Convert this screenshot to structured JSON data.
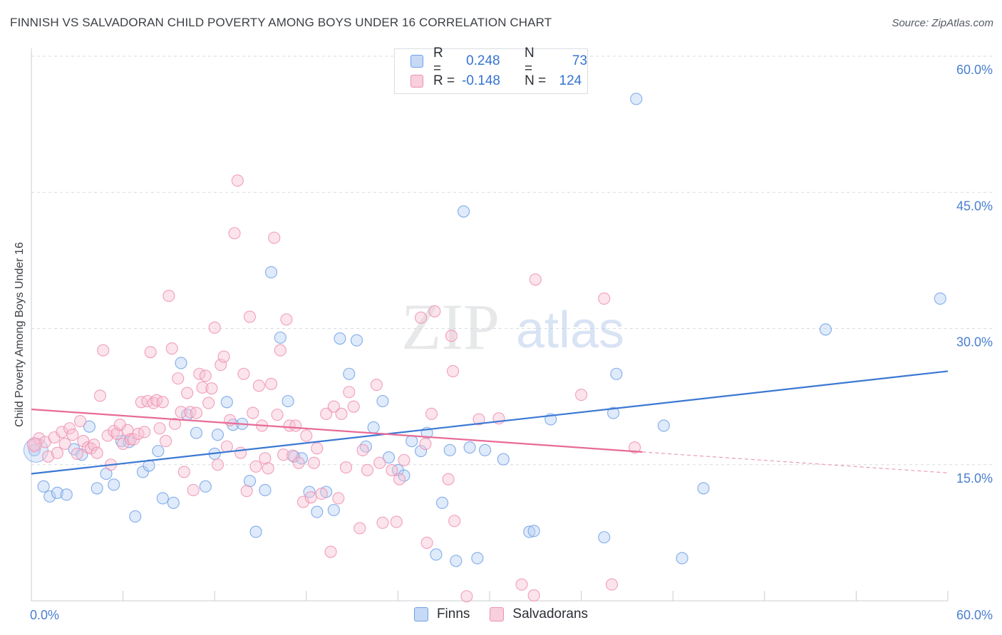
{
  "title": "FINNISH VS SALVADORAN CHILD POVERTY AMONG BOYS UNDER 16 CORRELATION CHART",
  "source": "Source: ZipAtlas.com",
  "watermark": {
    "zip": "ZIP",
    "atlas": "atlas"
  },
  "stats": [
    {
      "r_label": "R =",
      "r_value": "0.248",
      "n_label": "N =",
      "n_value": "73",
      "color": "#6fa0e8"
    },
    {
      "r_label": "R =",
      "r_value": "-0.148",
      "n_label": "N =",
      "n_value": "124",
      "color": "#ee8fb0"
    }
  ],
  "legend": [
    {
      "label": "Finns",
      "color": "#6fa0e8"
    },
    {
      "label": "Salvadorans",
      "color": "#ee8fb0"
    }
  ],
  "chart_data": {
    "type": "scatter",
    "title": "FINNISH VS SALVADORAN CHILD POVERTY AMONG BOYS UNDER 16 CORRELATION CHART",
    "xlabel": "",
    "ylabel": "Child Poverty Among Boys Under 16",
    "xlim": [
      0,
      60
    ],
    "ylim": [
      0,
      60
    ],
    "x_tick_labels": [
      {
        "value": 0,
        "label": "0.0%"
      },
      {
        "value": 60,
        "label": "60.0%"
      }
    ],
    "y_tick_labels": [
      {
        "value": 15,
        "label": "15.0%"
      },
      {
        "value": 30,
        "label": "30.0%"
      },
      {
        "value": 45,
        "label": "45.0%"
      },
      {
        "value": 60,
        "label": "60.0%"
      }
    ],
    "grid": true,
    "legend_position": "bottom",
    "series": [
      {
        "name": "Finns",
        "color": "#6fa0e8",
        "trend": {
          "x0": 0,
          "y0": 14.0,
          "x1": 60,
          "y1": 25.3
        },
        "points": [
          [
            0.2,
            16.6
          ],
          [
            0.8,
            12.6
          ],
          [
            1.2,
            11.5
          ],
          [
            1.7,
            11.9
          ],
          [
            2.3,
            11.7
          ],
          [
            2.8,
            16.7
          ],
          [
            3.3,
            16.1
          ],
          [
            3.8,
            19.2
          ],
          [
            4.3,
            12.4
          ],
          [
            4.9,
            14.0
          ],
          [
            5.4,
            12.8
          ],
          [
            5.9,
            17.6
          ],
          [
            6.4,
            17.5
          ],
          [
            6.8,
            9.3
          ],
          [
            7.3,
            14.2
          ],
          [
            7.7,
            14.9
          ],
          [
            8.3,
            16.5
          ],
          [
            8.6,
            11.3
          ],
          [
            9.3,
            10.8
          ],
          [
            9.8,
            26.2
          ],
          [
            10.2,
            20.5
          ],
          [
            10.8,
            18.5
          ],
          [
            11.4,
            12.6
          ],
          [
            12.0,
            16.2
          ],
          [
            12.2,
            18.3
          ],
          [
            12.8,
            21.9
          ],
          [
            13.2,
            19.4
          ],
          [
            13.8,
            19.5
          ],
          [
            14.3,
            13.2
          ],
          [
            14.7,
            7.6
          ],
          [
            15.3,
            12.2
          ],
          [
            15.7,
            36.2
          ],
          [
            16.3,
            29.0
          ],
          [
            16.8,
            22.0
          ],
          [
            17.2,
            15.9
          ],
          [
            17.7,
            15.7
          ],
          [
            18.2,
            12.0
          ],
          [
            18.7,
            9.8
          ],
          [
            19.3,
            12.0
          ],
          [
            19.8,
            10.0
          ],
          [
            20.2,
            28.9
          ],
          [
            20.8,
            25.0
          ],
          [
            21.3,
            28.7
          ],
          [
            21.9,
            17.0
          ],
          [
            22.4,
            19.1
          ],
          [
            23.0,
            22.0
          ],
          [
            23.4,
            15.8
          ],
          [
            24.0,
            14.4
          ],
          [
            24.4,
            13.8
          ],
          [
            24.9,
            17.6
          ],
          [
            25.5,
            16.5
          ],
          [
            25.9,
            18.5
          ],
          [
            26.5,
            5.1
          ],
          [
            26.9,
            10.8
          ],
          [
            27.4,
            16.6
          ],
          [
            27.8,
            4.4
          ],
          [
            28.3,
            42.9
          ],
          [
            28.7,
            16.9
          ],
          [
            29.2,
            4.7
          ],
          [
            29.7,
            16.6
          ],
          [
            30.9,
            15.6
          ],
          [
            32.6,
            7.6
          ],
          [
            32.9,
            7.7
          ],
          [
            34.0,
            20.0
          ],
          [
            37.5,
            7.0
          ],
          [
            38.1,
            20.7
          ],
          [
            38.3,
            25.0
          ],
          [
            39.6,
            55.3
          ],
          [
            41.4,
            19.3
          ],
          [
            42.6,
            4.7
          ],
          [
            44.0,
            12.4
          ],
          [
            52.0,
            29.9
          ],
          [
            59.5,
            33.3
          ]
        ]
      },
      {
        "name": "Salvadorans",
        "color": "#ee8fb0",
        "trend": {
          "x0": 0,
          "y0": 21.1,
          "x1": 40,
          "y1": 16.4,
          "dash_x1": 60,
          "dash_y1": 14.1
        },
        "points": [
          [
            0.2,
            17.2
          ],
          [
            0.5,
            17.9
          ],
          [
            0.9,
            17.5
          ],
          [
            1.1,
            15.9
          ],
          [
            1.5,
            18.0
          ],
          [
            1.7,
            16.3
          ],
          [
            2.0,
            18.6
          ],
          [
            2.2,
            17.3
          ],
          [
            2.5,
            19.0
          ],
          [
            2.7,
            18.3
          ],
          [
            3.0,
            16.2
          ],
          [
            3.2,
            19.8
          ],
          [
            3.4,
            17.6
          ],
          [
            3.7,
            16.9
          ],
          [
            3.9,
            16.8
          ],
          [
            4.1,
            17.2
          ],
          [
            4.3,
            16.3
          ],
          [
            4.5,
            22.6
          ],
          [
            4.7,
            27.6
          ],
          [
            5.0,
            18.2
          ],
          [
            5.2,
            15.0
          ],
          [
            5.4,
            18.7
          ],
          [
            5.6,
            18.4
          ],
          [
            5.8,
            19.4
          ],
          [
            6.0,
            17.3
          ],
          [
            6.3,
            18.8
          ],
          [
            6.5,
            17.8
          ],
          [
            6.7,
            17.8
          ],
          [
            7.0,
            18.4
          ],
          [
            7.2,
            21.9
          ],
          [
            7.4,
            18.6
          ],
          [
            7.6,
            22.0
          ],
          [
            7.8,
            27.4
          ],
          [
            8.0,
            21.8
          ],
          [
            8.2,
            22.1
          ],
          [
            8.4,
            19.0
          ],
          [
            8.6,
            21.9
          ],
          [
            8.8,
            17.6
          ],
          [
            9.0,
            33.6
          ],
          [
            9.2,
            27.8
          ],
          [
            9.4,
            19.5
          ],
          [
            9.6,
            24.5
          ],
          [
            9.8,
            20.8
          ],
          [
            10.0,
            14.2
          ],
          [
            10.2,
            22.9
          ],
          [
            10.4,
            20.8
          ],
          [
            10.6,
            12.2
          ],
          [
            10.8,
            20.7
          ],
          [
            11.0,
            25.0
          ],
          [
            11.2,
            23.5
          ],
          [
            11.4,
            24.8
          ],
          [
            11.6,
            21.8
          ],
          [
            11.8,
            23.4
          ],
          [
            12.0,
            30.1
          ],
          [
            12.2,
            15.0
          ],
          [
            12.4,
            26.0
          ],
          [
            12.6,
            26.9
          ],
          [
            12.8,
            17.0
          ],
          [
            13.0,
            19.9
          ],
          [
            13.3,
            40.5
          ],
          [
            13.5,
            46.3
          ],
          [
            13.7,
            16.3
          ],
          [
            13.9,
            25.0
          ],
          [
            14.1,
            12.1
          ],
          [
            14.3,
            31.3
          ],
          [
            14.5,
            20.7
          ],
          [
            14.7,
            14.8
          ],
          [
            14.9,
            23.7
          ],
          [
            15.1,
            19.3
          ],
          [
            15.3,
            15.7
          ],
          [
            15.5,
            14.6
          ],
          [
            15.7,
            23.9
          ],
          [
            15.9,
            40.0
          ],
          [
            16.1,
            20.5
          ],
          [
            16.3,
            27.6
          ],
          [
            16.5,
            16.1
          ],
          [
            16.7,
            31.0
          ],
          [
            16.9,
            19.3
          ],
          [
            17.1,
            16.0
          ],
          [
            17.3,
            19.3
          ],
          [
            17.5,
            15.2
          ],
          [
            17.8,
            10.9
          ],
          [
            18.0,
            18.2
          ],
          [
            18.3,
            11.4
          ],
          [
            18.5,
            15.2
          ],
          [
            18.7,
            16.8
          ],
          [
            19.0,
            11.8
          ],
          [
            19.3,
            20.6
          ],
          [
            19.6,
            5.4
          ],
          [
            19.8,
            21.4
          ],
          [
            20.1,
            11.3
          ],
          [
            20.3,
            20.6
          ],
          [
            20.6,
            14.7
          ],
          [
            20.8,
            23.0
          ],
          [
            21.1,
            21.4
          ],
          [
            21.5,
            8.0
          ],
          [
            21.7,
            16.6
          ],
          [
            22.0,
            14.4
          ],
          [
            22.6,
            23.8
          ],
          [
            22.8,
            15.2
          ],
          [
            23.0,
            8.6
          ],
          [
            23.6,
            14.4
          ],
          [
            23.9,
            8.7
          ],
          [
            24.1,
            13.4
          ],
          [
            24.4,
            15.5
          ],
          [
            25.5,
            31.2
          ],
          [
            25.8,
            17.3
          ],
          [
            25.9,
            6.4
          ],
          [
            26.2,
            20.6
          ],
          [
            26.4,
            31.9
          ],
          [
            27.3,
            13.4
          ],
          [
            27.5,
            29.2
          ],
          [
            27.6,
            25.3
          ],
          [
            27.7,
            8.8
          ],
          [
            28.5,
            0.5
          ],
          [
            29.3,
            20.0
          ],
          [
            30.6,
            20.1
          ],
          [
            32.1,
            1.8
          ],
          [
            32.9,
            0.6
          ],
          [
            33.0,
            35.4
          ],
          [
            36.0,
            22.7
          ],
          [
            37.5,
            33.3
          ],
          [
            38.0,
            1.8
          ],
          [
            39.5,
            16.9
          ]
        ]
      }
    ]
  }
}
